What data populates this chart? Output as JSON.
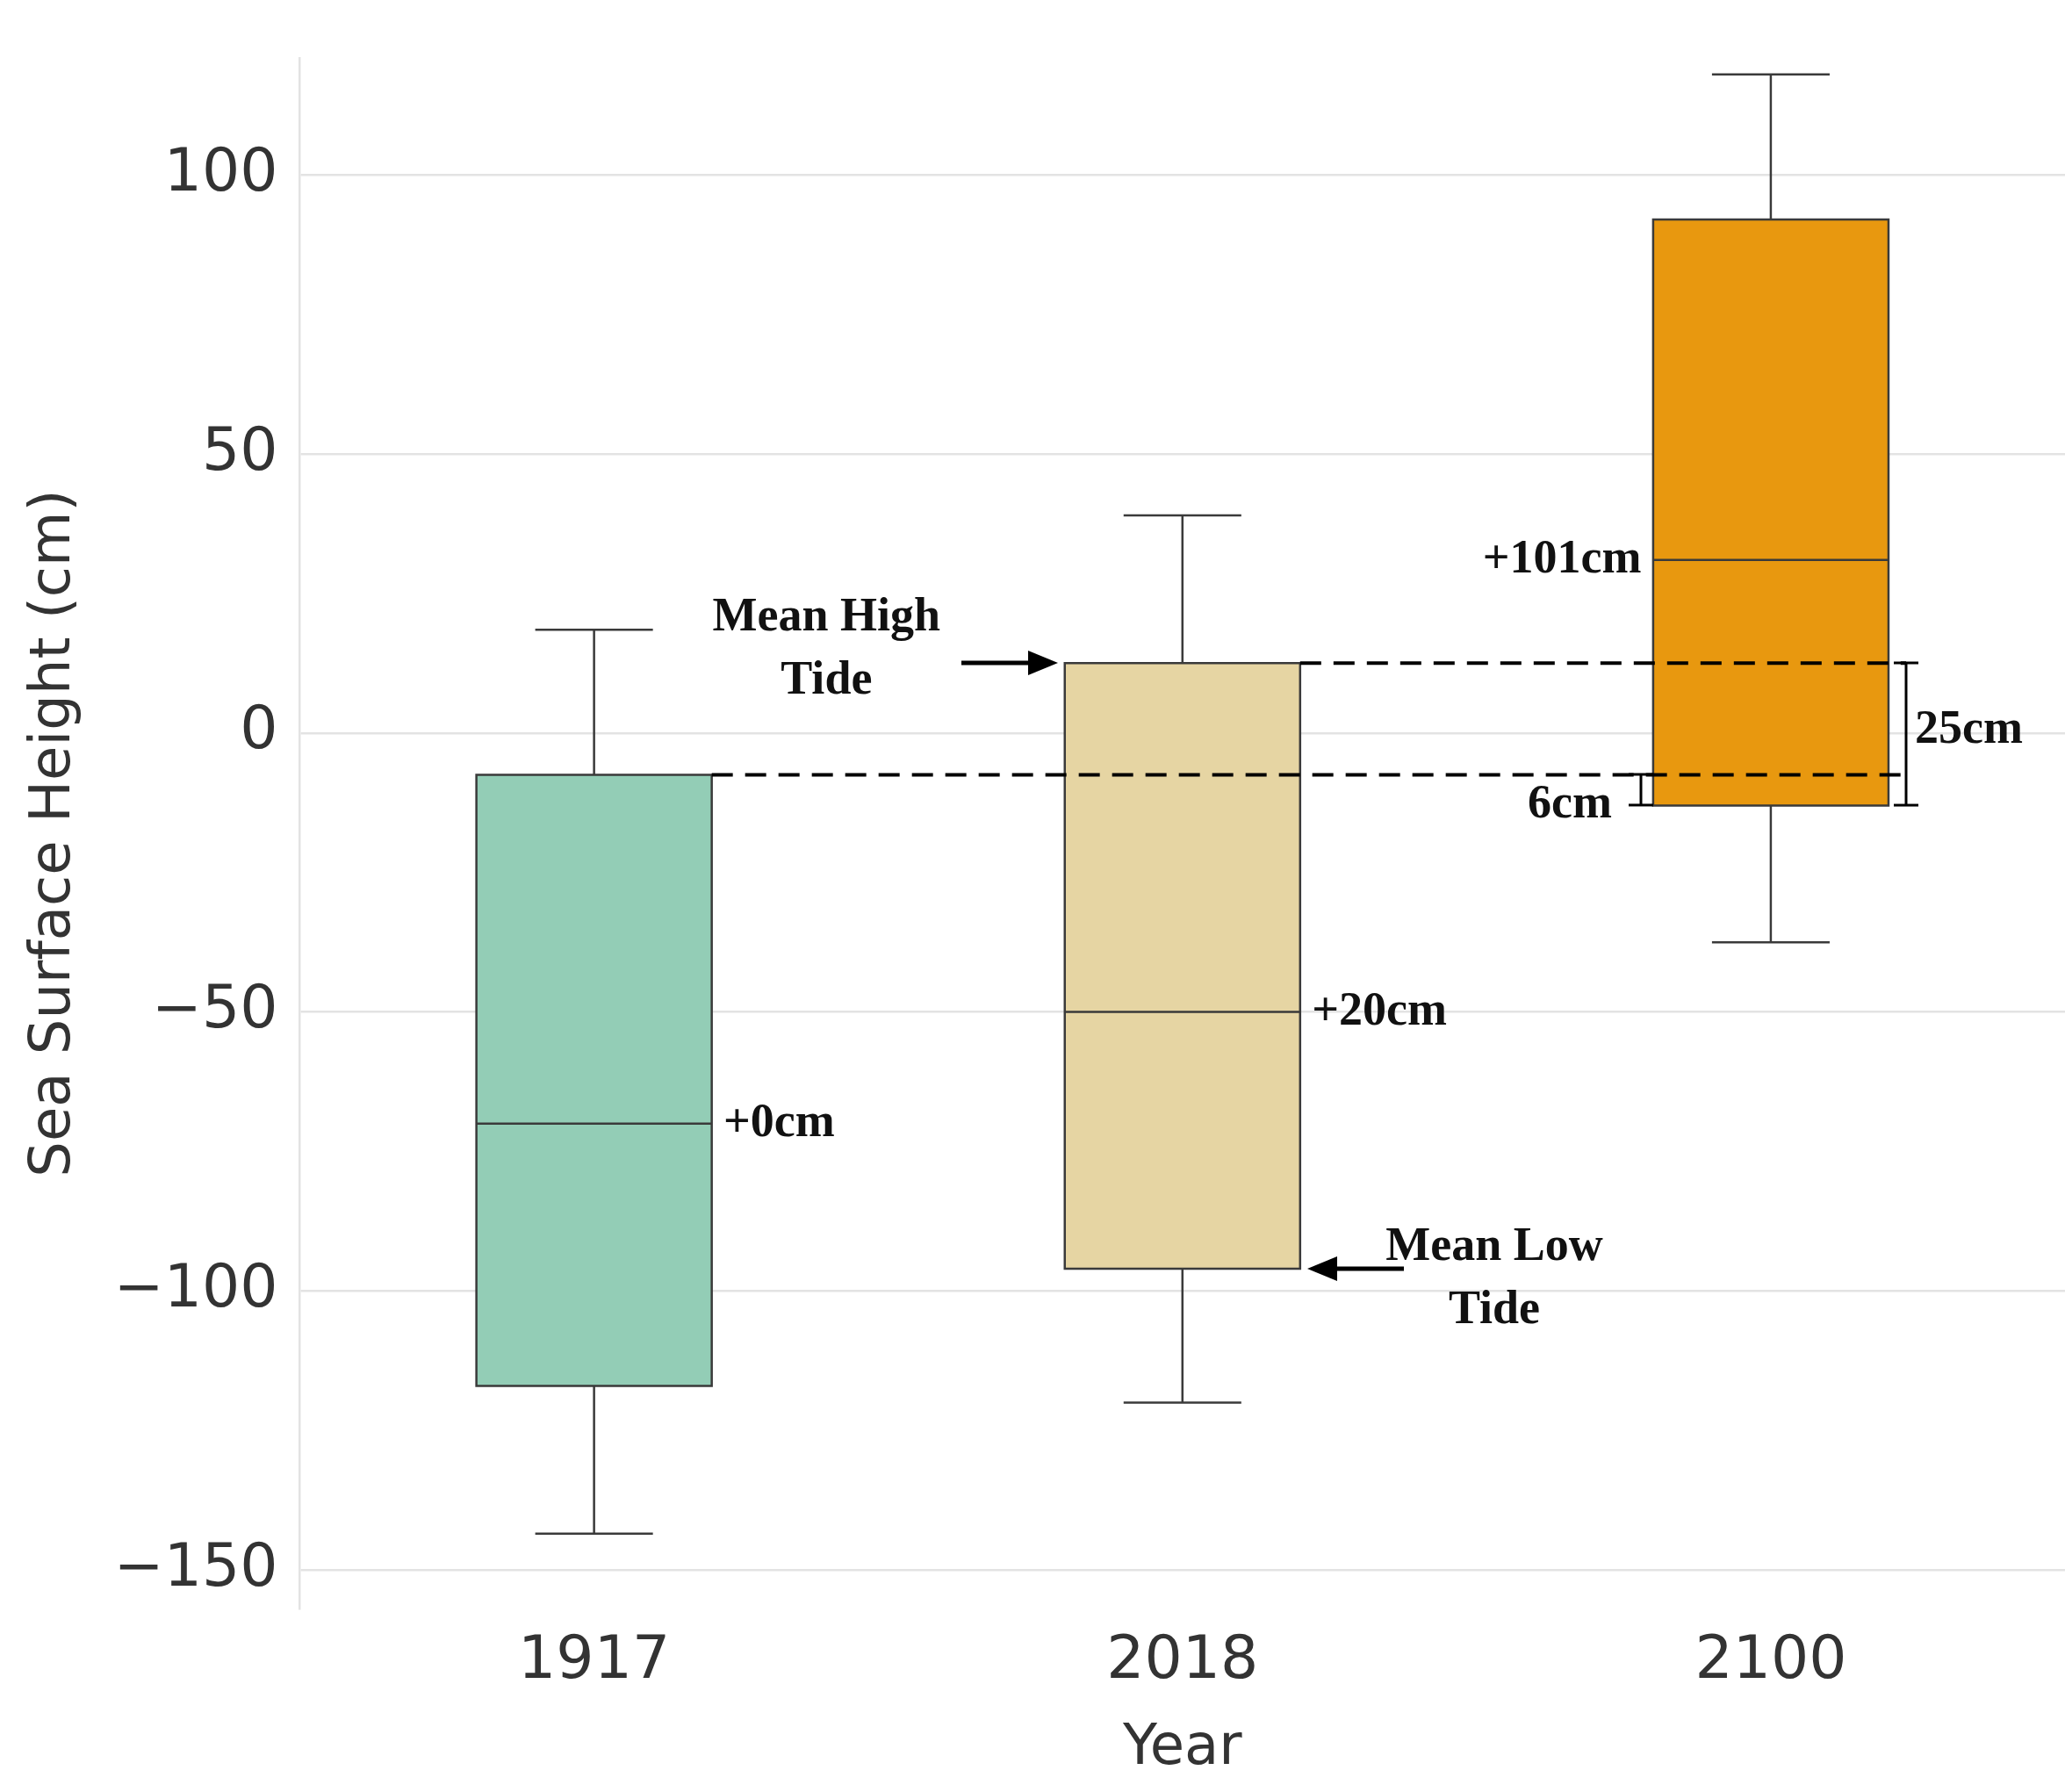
{
  "chart_data": {
    "type": "box",
    "xlabel": "Year",
    "ylabel": "Sea Surface Height (cm)",
    "categories": [
      "1917",
      "2018",
      "2100"
    ],
    "colors": [
      "#93cdb6",
      "#e6d5a3",
      "#e8980f"
    ],
    "boxes": [
      {
        "low": -143.5,
        "q1": -117,
        "median": -70,
        "q3": -7.5,
        "high": 18.5
      },
      {
        "low": -120,
        "q1": -96,
        "median": -50,
        "q3": 12.5,
        "high": 39
      },
      {
        "low": -37.5,
        "q1": -13,
        "median": 31,
        "q3": 92,
        "high": 118
      }
    ],
    "ylim": [
      -157,
      121
    ],
    "yticks": [
      -150,
      -100,
      -50,
      0,
      50,
      100
    ],
    "grid": "y",
    "ref_lines": [
      {
        "axis": "y",
        "value": -7.5,
        "line_style": "dashed",
        "color": "#000000"
      },
      {
        "axis": "y",
        "value": 12.5,
        "line_style": "dashed",
        "color": "#000000"
      }
    ],
    "annotations": [
      {
        "text": "+0cm",
        "x": "1917",
        "y": -70
      },
      {
        "text": "+20cm",
        "x": "2018",
        "y": -50
      },
      {
        "text": "+101cm",
        "x": "2100",
        "y": 31
      },
      "Mean High Tide",
      "Mean Low Tide",
      "25cm",
      "6cm"
    ]
  }
}
